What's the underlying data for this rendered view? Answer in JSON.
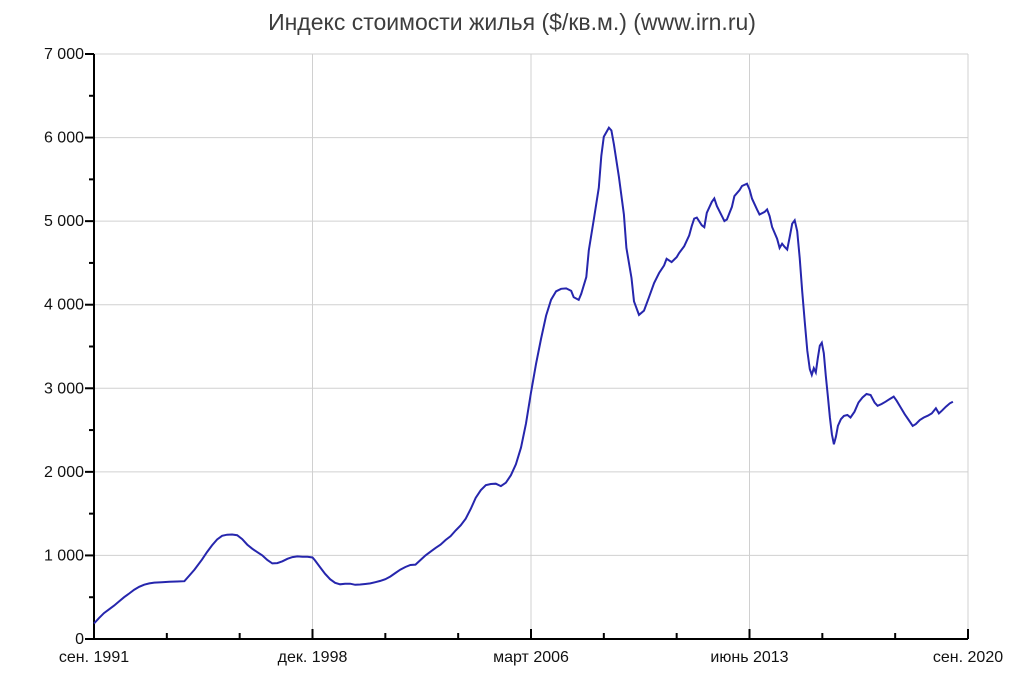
{
  "chart_data": {
    "type": "line",
    "title": "Индекс стоимости жилья ($/кв.м.) (www.irn.ru)",
    "x_axis": {
      "unit": "months since Sep 1991",
      "range": [
        0,
        348
      ],
      "minor_tick_every": 29,
      "major_ticks": [
        {
          "m": 0,
          "label": "сен. 1991"
        },
        {
          "m": 87,
          "label": "дек. 1998"
        },
        {
          "m": 174,
          "label": "март 2006"
        },
        {
          "m": 261,
          "label": "июнь 2013"
        },
        {
          "m": 348,
          "label": "сен. 2020"
        }
      ]
    },
    "y_axis": {
      "range": [
        0,
        7000
      ],
      "major_tick_every": 1000,
      "minor_tick_every": 500,
      "tick_labels": [
        "0",
        "1 000",
        "2 000",
        "3 000",
        "4 000",
        "5 000",
        "6 000",
        "7 000"
      ]
    },
    "grid": {
      "horizontal_major": true,
      "vertical_major": true,
      "minor": false
    },
    "legend": {
      "visible": false
    },
    "series": [
      {
        "name": "Индекс стоимости жилья, $/кв.м.",
        "color": "#2626ad",
        "points": [
          [
            0,
            185
          ],
          [
            2,
            250
          ],
          [
            4,
            310
          ],
          [
            6,
            355
          ],
          [
            8,
            400
          ],
          [
            10,
            450
          ],
          [
            12,
            500
          ],
          [
            14,
            545
          ],
          [
            16,
            590
          ],
          [
            18,
            625
          ],
          [
            20,
            650
          ],
          [
            22,
            665
          ],
          [
            24,
            675
          ],
          [
            27,
            680
          ],
          [
            30,
            685
          ],
          [
            33,
            688
          ],
          [
            36,
            692
          ],
          [
            38,
            760
          ],
          [
            40,
            830
          ],
          [
            43,
            950
          ],
          [
            45,
            1040
          ],
          [
            47,
            1120
          ],
          [
            49,
            1190
          ],
          [
            51,
            1235
          ],
          [
            53,
            1248
          ],
          [
            55,
            1250
          ],
          [
            57,
            1242
          ],
          [
            59,
            1195
          ],
          [
            61,
            1130
          ],
          [
            63,
            1080
          ],
          [
            65,
            1040
          ],
          [
            67,
            1000
          ],
          [
            69,
            945
          ],
          [
            71,
            905
          ],
          [
            73,
            908
          ],
          [
            75,
            930
          ],
          [
            77,
            960
          ],
          [
            79,
            980
          ],
          [
            81,
            988
          ],
          [
            83,
            985
          ],
          [
            85,
            983
          ],
          [
            87,
            975
          ],
          [
            88,
            940
          ],
          [
            90,
            860
          ],
          [
            92,
            780
          ],
          [
            94,
            715
          ],
          [
            96,
            672
          ],
          [
            98,
            655
          ],
          [
            100,
            660
          ],
          [
            102,
            662
          ],
          [
            104,
            648
          ],
          [
            106,
            652
          ],
          [
            108,
            658
          ],
          [
            110,
            665
          ],
          [
            112,
            680
          ],
          [
            114,
            695
          ],
          [
            116,
            715
          ],
          [
            118,
            748
          ],
          [
            120,
            790
          ],
          [
            122,
            830
          ],
          [
            124,
            862
          ],
          [
            126,
            885
          ],
          [
            128,
            890
          ],
          [
            130,
            945
          ],
          [
            132,
            1000
          ],
          [
            134,
            1045
          ],
          [
            136,
            1090
          ],
          [
            138,
            1130
          ],
          [
            140,
            1185
          ],
          [
            142,
            1230
          ],
          [
            144,
            1300
          ],
          [
            146,
            1360
          ],
          [
            148,
            1440
          ],
          [
            150,
            1555
          ],
          [
            152,
            1690
          ],
          [
            154,
            1780
          ],
          [
            156,
            1840
          ],
          [
            158,
            1855
          ],
          [
            160,
            1858
          ],
          [
            162,
            1830
          ],
          [
            164,
            1870
          ],
          [
            166,
            1960
          ],
          [
            168,
            2090
          ],
          [
            170,
            2290
          ],
          [
            172,
            2580
          ],
          [
            174,
            2950
          ],
          [
            176,
            3290
          ],
          [
            178,
            3590
          ],
          [
            180,
            3870
          ],
          [
            182,
            4060
          ],
          [
            184,
            4160
          ],
          [
            186,
            4190
          ],
          [
            188,
            4195
          ],
          [
            190,
            4165
          ],
          [
            191,
            4090
          ],
          [
            193,
            4058
          ],
          [
            194,
            4130
          ],
          [
            196,
            4330
          ],
          [
            197,
            4650
          ],
          [
            199,
            5020
          ],
          [
            201,
            5400
          ],
          [
            202,
            5780
          ],
          [
            203,
            6010
          ],
          [
            205,
            6118
          ],
          [
            206,
            6085
          ],
          [
            207,
            5920
          ],
          [
            209,
            5530
          ],
          [
            211,
            5080
          ],
          [
            212,
            4680
          ],
          [
            214,
            4320
          ],
          [
            215,
            4040
          ],
          [
            217,
            3878
          ],
          [
            219,
            3930
          ],
          [
            221,
            4090
          ],
          [
            223,
            4260
          ],
          [
            225,
            4380
          ],
          [
            227,
            4470
          ],
          [
            228,
            4550
          ],
          [
            230,
            4510
          ],
          [
            232,
            4570
          ],
          [
            233,
            4620
          ],
          [
            235,
            4700
          ],
          [
            237,
            4830
          ],
          [
            238,
            4940
          ],
          [
            239,
            5030
          ],
          [
            240,
            5042
          ],
          [
            242,
            4950
          ],
          [
            243,
            4928
          ],
          [
            244,
            5100
          ],
          [
            246,
            5230
          ],
          [
            247,
            5272
          ],
          [
            248,
            5180
          ],
          [
            250,
            5060
          ],
          [
            251,
            5000
          ],
          [
            252,
            5020
          ],
          [
            254,
            5170
          ],
          [
            255,
            5300
          ],
          [
            257,
            5370
          ],
          [
            258,
            5420
          ],
          [
            260,
            5448
          ],
          [
            261,
            5380
          ],
          [
            262,
            5270
          ],
          [
            264,
            5140
          ],
          [
            265,
            5080
          ],
          [
            267,
            5110
          ],
          [
            268,
            5140
          ],
          [
            269,
            5060
          ],
          [
            270,
            4930
          ],
          [
            272,
            4790
          ],
          [
            273,
            4680
          ],
          [
            274,
            4730
          ],
          [
            275,
            4690
          ],
          [
            276,
            4660
          ],
          [
            277,
            4810
          ],
          [
            278,
            4970
          ],
          [
            279,
            5010
          ],
          [
            280,
            4880
          ],
          [
            281,
            4560
          ],
          [
            282,
            4160
          ],
          [
            283,
            3790
          ],
          [
            284,
            3450
          ],
          [
            285,
            3230
          ],
          [
            285.8,
            3160
          ],
          [
            286.6,
            3240
          ],
          [
            287.4,
            3190
          ],
          [
            288.2,
            3360
          ],
          [
            289,
            3510
          ],
          [
            289.8,
            3545
          ],
          [
            290.6,
            3420
          ],
          [
            291.4,
            3150
          ],
          [
            292.2,
            2900
          ],
          [
            293,
            2650
          ],
          [
            293.8,
            2450
          ],
          [
            294.6,
            2330
          ],
          [
            295.4,
            2420
          ],
          [
            296.2,
            2550
          ],
          [
            297.4,
            2630
          ],
          [
            298.6,
            2670
          ],
          [
            300,
            2680
          ],
          [
            301.2,
            2650
          ],
          [
            302.8,
            2720
          ],
          [
            304.4,
            2830
          ],
          [
            306,
            2890
          ],
          [
            307.6,
            2932
          ],
          [
            309.2,
            2920
          ],
          [
            310.8,
            2830
          ],
          [
            312,
            2790
          ],
          [
            313.6,
            2812
          ],
          [
            315.2,
            2840
          ],
          [
            316.8,
            2870
          ],
          [
            318.4,
            2900
          ],
          [
            319.6,
            2850
          ],
          [
            321.2,
            2770
          ],
          [
            322.8,
            2690
          ],
          [
            324.4,
            2620
          ],
          [
            326,
            2550
          ],
          [
            327.2,
            2572
          ],
          [
            328.8,
            2620
          ],
          [
            330.4,
            2650
          ],
          [
            332,
            2672
          ],
          [
            333.6,
            2700
          ],
          [
            335.2,
            2760
          ],
          [
            336.4,
            2700
          ],
          [
            337.6,
            2732
          ],
          [
            339.2,
            2780
          ],
          [
            340.8,
            2820
          ],
          [
            342,
            2840
          ]
        ]
      }
    ],
    "colors": {
      "line": "#2626ad",
      "grid": "#d0d0d0",
      "axis": "#000000",
      "title": "#3d3d3d",
      "tick_label": "#111111",
      "background": "#ffffff"
    }
  }
}
